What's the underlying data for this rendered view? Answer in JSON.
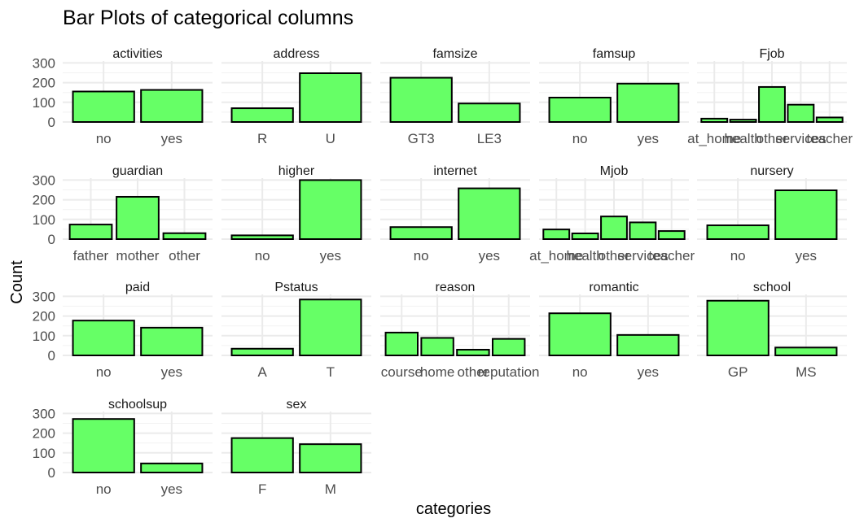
{
  "chart_data": {
    "type": "bar",
    "title": "Bar Plots of categorical columns",
    "xlabel": "categories",
    "ylabel": "Count",
    "ylim": [
      0,
      310
    ],
    "y_ticks": [
      0,
      100,
      200,
      300
    ],
    "bar_color": "#66ff66",
    "bar_outline": "#000000",
    "grid": true,
    "panels": [
      {
        "name": "activities",
        "categories": [
          "no",
          "yes"
        ],
        "values": [
          155,
          163
        ]
      },
      {
        "name": "address",
        "categories": [
          "R",
          "U"
        ],
        "values": [
          70,
          248
        ]
      },
      {
        "name": "famsize",
        "categories": [
          "GT3",
          "LE3"
        ],
        "values": [
          225,
          94
        ]
      },
      {
        "name": "famsup",
        "categories": [
          "no",
          "yes"
        ],
        "values": [
          124,
          195
        ]
      },
      {
        "name": "Fjob",
        "categories": [
          "at_home",
          "health",
          "other",
          "services",
          "teacher"
        ],
        "values": [
          17,
          12,
          178,
          88,
          23
        ]
      },
      {
        "name": "guardian",
        "categories": [
          "father",
          "mother",
          "other"
        ],
        "values": [
          74,
          215,
          30
        ]
      },
      {
        "name": "higher",
        "categories": [
          "no",
          "yes"
        ],
        "values": [
          19,
          300
        ]
      },
      {
        "name": "internet",
        "categories": [
          "no",
          "yes"
        ],
        "values": [
          61,
          258
        ]
      },
      {
        "name": "Mjob",
        "categories": [
          "at_home",
          "health",
          "other",
          "services",
          "teacher"
        ],
        "values": [
          49,
          29,
          115,
          85,
          41
        ]
      },
      {
        "name": "nursery",
        "categories": [
          "no",
          "yes"
        ],
        "values": [
          70,
          248
        ]
      },
      {
        "name": "paid",
        "categories": [
          "no",
          "yes"
        ],
        "values": [
          177,
          141
        ]
      },
      {
        "name": "Pstatus",
        "categories": [
          "A",
          "T"
        ],
        "values": [
          34,
          284
        ]
      },
      {
        "name": "reason",
        "categories": [
          "course",
          "home",
          "other",
          "reputation"
        ],
        "values": [
          116,
          89,
          29,
          84
        ]
      },
      {
        "name": "romantic",
        "categories": [
          "no",
          "yes"
        ],
        "values": [
          214,
          104
        ]
      },
      {
        "name": "school",
        "categories": [
          "GP",
          "MS"
        ],
        "values": [
          278,
          40
        ]
      },
      {
        "name": "schoolsup",
        "categories": [
          "no",
          "yes"
        ],
        "values": [
          272,
          46
        ]
      },
      {
        "name": "sex",
        "categories": [
          "F",
          "M"
        ],
        "values": [
          175,
          144
        ]
      }
    ]
  }
}
